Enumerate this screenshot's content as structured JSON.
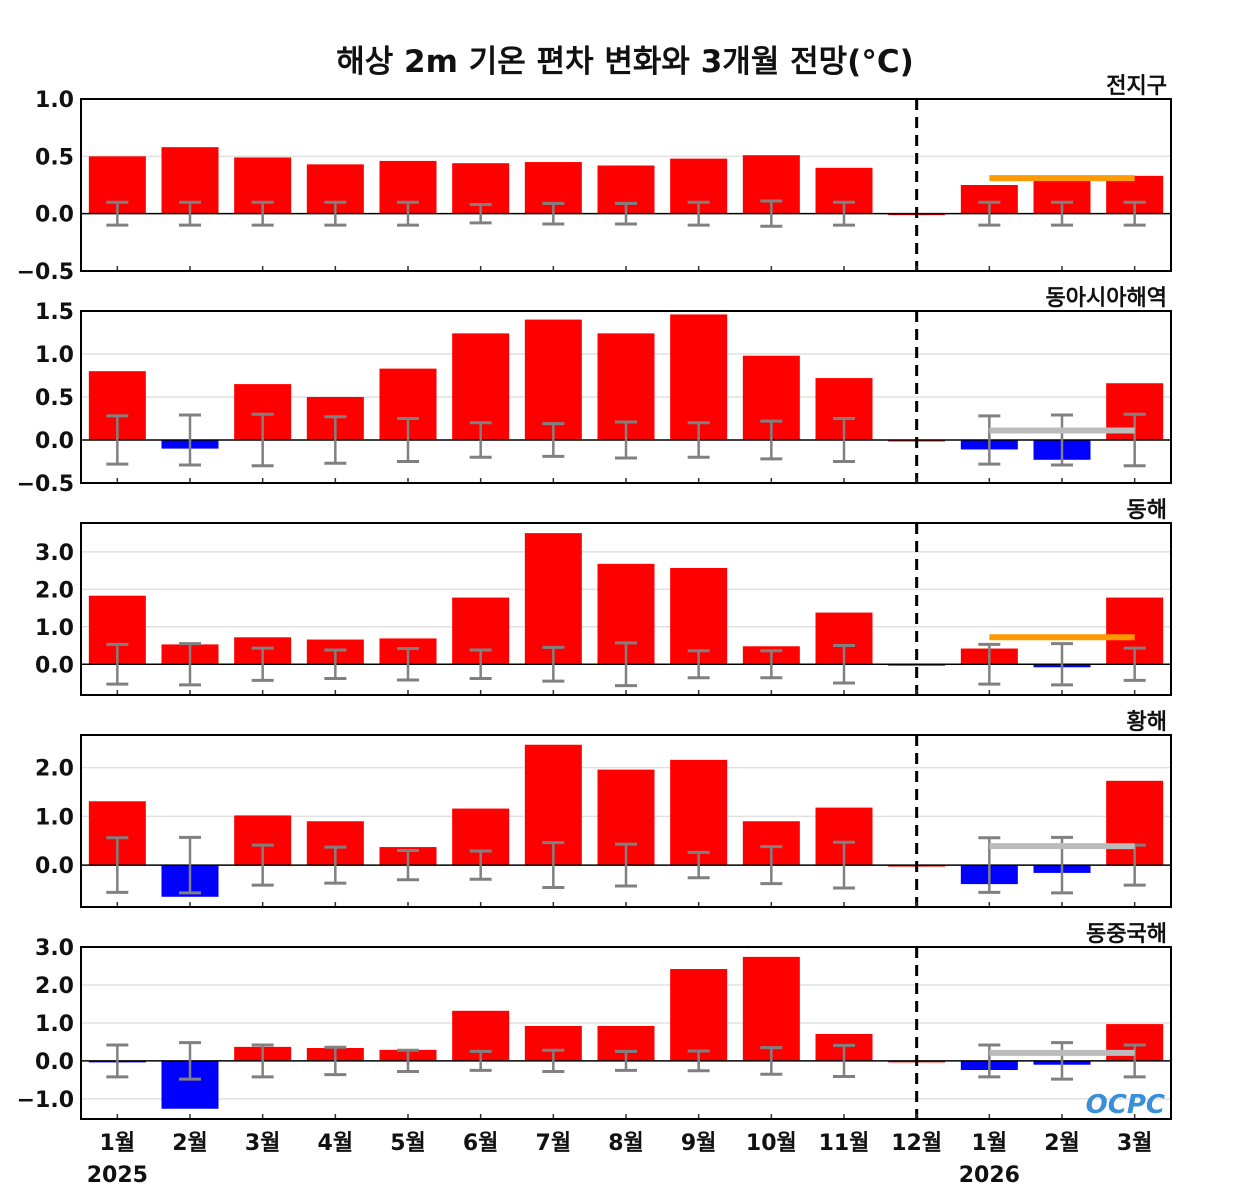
{
  "chart_data": {
    "type": "bar",
    "title": "해상 2m 기온 편차 변화와 3개월 전망(°C)",
    "categories": [
      "1월",
      "2월",
      "3월",
      "4월",
      "5월",
      "6월",
      "7월",
      "8월",
      "9월",
      "10월",
      "11월",
      "12월",
      "1월",
      "2월",
      "3월"
    ],
    "year_labels": [
      {
        "index": 0,
        "label": "2025"
      },
      {
        "index": 12,
        "label": "2026"
      }
    ],
    "forecast_divider_index": 11,
    "logo": "OCPC",
    "colors": {
      "positive": "#ff0000",
      "negative": "#0000ff",
      "error": "#808080",
      "forecast_warm": "#ff9900",
      "forecast_normal": "#bbbbbb"
    },
    "panels": [
      {
        "name": "전지구",
        "ylim": [
          -0.5,
          1.0
        ],
        "ticks": [
          1.0,
          0.5,
          0.0,
          -0.5
        ],
        "values": [
          0.5,
          0.58,
          0.49,
          0.43,
          0.46,
          0.44,
          0.45,
          0.42,
          0.48,
          0.51,
          0.4,
          0.0,
          0.25,
          0.3,
          0.33
        ],
        "errors": [
          0.1,
          0.1,
          0.1,
          0.1,
          0.1,
          0.08,
          0.09,
          0.09,
          0.1,
          0.11,
          0.1,
          0,
          0.1,
          0.1,
          0.1
        ],
        "forecast_line": {
          "value": 0.31,
          "color": "#ff9900"
        }
      },
      {
        "name": "동아시아해역",
        "ylim": [
          -0.5,
          1.5
        ],
        "ticks": [
          1.5,
          1.0,
          0.5,
          0.0,
          -0.5
        ],
        "values": [
          0.8,
          -0.1,
          0.65,
          0.5,
          0.83,
          1.24,
          1.4,
          1.24,
          1.46,
          0.98,
          0.72,
          0.0,
          -0.11,
          -0.23,
          0.66
        ],
        "errors": [
          0.28,
          0.29,
          0.3,
          0.27,
          0.25,
          0.2,
          0.19,
          0.21,
          0.2,
          0.22,
          0.25,
          0,
          0.28,
          0.29,
          0.3
        ],
        "forecast_line": {
          "value": 0.11,
          "color": "#bbbbbb"
        }
      },
      {
        "name": "동해",
        "ylim": [
          -0.82,
          3.77
        ],
        "ticks": [
          3.0,
          2.0,
          1.0,
          0.0
        ],
        "values": [
          1.83,
          0.53,
          0.72,
          0.66,
          0.69,
          1.78,
          3.5,
          2.68,
          2.57,
          0.48,
          1.38,
          0.0,
          0.42,
          -0.08,
          1.78
        ],
        "errors": [
          0.53,
          0.55,
          0.43,
          0.38,
          0.42,
          0.38,
          0.45,
          0.57,
          0.36,
          0.36,
          0.5,
          0,
          0.53,
          0.55,
          0.43
        ],
        "forecast_line": {
          "value": 0.72,
          "color": "#ff9900"
        }
      },
      {
        "name": "황해",
        "ylim": [
          -0.86,
          2.67
        ],
        "ticks": [
          2.0,
          1.0,
          0.0
        ],
        "values": [
          1.31,
          -0.65,
          1.02,
          0.9,
          0.37,
          1.16,
          2.47,
          1.96,
          2.16,
          0.9,
          1.18,
          0.0,
          -0.39,
          -0.16,
          1.73
        ],
        "errors": [
          0.56,
          0.57,
          0.41,
          0.37,
          0.3,
          0.29,
          0.46,
          0.43,
          0.26,
          0.38,
          0.47,
          0,
          0.56,
          0.57,
          0.41
        ],
        "forecast_line": {
          "value": 0.39,
          "color": "#bbbbbb"
        }
      },
      {
        "name": "동중국해",
        "ylim": [
          -1.53,
          3.0
        ],
        "ticks": [
          3.0,
          2.0,
          1.0,
          0.0,
          -1.0
        ],
        "values": [
          -0.02,
          -1.26,
          0.37,
          0.34,
          0.29,
          1.32,
          0.92,
          0.92,
          2.42,
          2.74,
          0.71,
          0.0,
          -0.24,
          -0.1,
          0.97
        ],
        "errors": [
          0.42,
          0.48,
          0.42,
          0.36,
          0.28,
          0.25,
          0.28,
          0.25,
          0.26,
          0.35,
          0.41,
          0,
          0.42,
          0.48,
          0.42
        ],
        "forecast_line": {
          "value": 0.21,
          "color": "#bbbbbb"
        }
      }
    ]
  }
}
